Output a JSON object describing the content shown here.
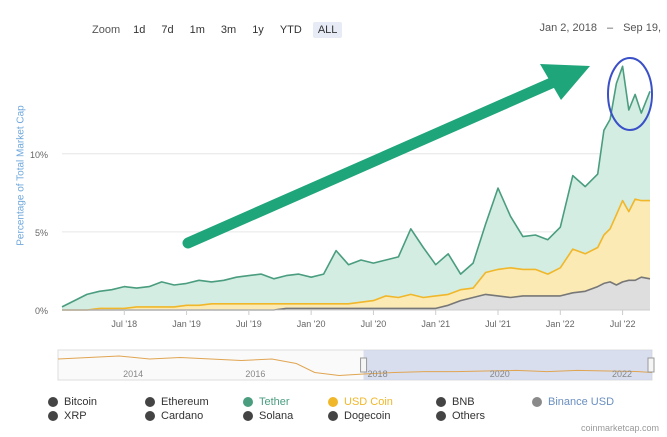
{
  "zoom": {
    "label": "Zoom",
    "buttons": [
      "1d",
      "7d",
      "1m",
      "3m",
      "1y",
      "YTD",
      "ALL"
    ]
  },
  "range": {
    "from": "Jan 2, 2018",
    "separator": "–",
    "to": "Sep 19,"
  },
  "chart_data": {
    "type": "area",
    "title": "",
    "ylabel": "Percentage of Total Market Cap",
    "ylim": [
      0,
      16
    ],
    "yticks": [
      {
        "value": 0,
        "label": "0%"
      },
      {
        "value": 5,
        "label": "5%"
      },
      {
        "value": 10,
        "label": "10%"
      }
    ],
    "xlim": [
      2018.0,
      2022.72
    ],
    "xticks": [
      {
        "value": 2018.5,
        "label": "Jul '18"
      },
      {
        "value": 2019.0,
        "label": "Jan '19"
      },
      {
        "value": 2019.5,
        "label": "Jul '19"
      },
      {
        "value": 2020.0,
        "label": "Jan '20"
      },
      {
        "value": 2020.5,
        "label": "Jul '20"
      },
      {
        "value": 2021.0,
        "label": "Jan '21"
      },
      {
        "value": 2021.5,
        "label": "Jul '21"
      },
      {
        "value": 2022.0,
        "label": "Jan '22"
      },
      {
        "value": 2022.5,
        "label": "Jul '22"
      }
    ],
    "x": [
      2018.0,
      2018.1,
      2018.2,
      2018.3,
      2018.4,
      2018.5,
      2018.6,
      2018.7,
      2018.8,
      2018.9,
      2019.0,
      2019.1,
      2019.2,
      2019.3,
      2019.4,
      2019.5,
      2019.6,
      2019.7,
      2019.8,
      2019.9,
      2020.0,
      2020.1,
      2020.2,
      2020.3,
      2020.4,
      2020.5,
      2020.6,
      2020.7,
      2020.8,
      2020.9,
      2021.0,
      2021.1,
      2021.2,
      2021.3,
      2021.4,
      2021.5,
      2021.6,
      2021.7,
      2021.8,
      2021.9,
      2022.0,
      2022.1,
      2022.2,
      2022.3,
      2022.35,
      2022.4,
      2022.45,
      2022.5,
      2022.55,
      2022.6,
      2022.65,
      2022.72
    ],
    "series": [
      {
        "name": "Tether",
        "color": "#4a9d7f",
        "fill": "#d3ede3",
        "values": [
          0.2,
          0.6,
          1.0,
          1.2,
          1.3,
          1.5,
          1.4,
          1.5,
          1.8,
          1.6,
          1.7,
          1.9,
          1.8,
          1.9,
          2.1,
          2.2,
          2.3,
          2.0,
          2.2,
          2.3,
          2.1,
          2.3,
          3.8,
          2.9,
          3.2,
          3.0,
          3.2,
          3.4,
          5.2,
          4.0,
          2.9,
          3.6,
          2.3,
          3.0,
          5.5,
          7.8,
          6.0,
          4.7,
          4.8,
          4.5,
          5.3,
          8.6,
          7.9,
          8.7,
          11.5,
          12.2,
          14.5,
          15.6,
          12.8,
          13.8,
          12.6,
          14.0
        ]
      },
      {
        "name": "USD Coin",
        "color": "#f0b72a",
        "fill": "#fbeab4",
        "values": [
          0.0,
          0.0,
          0.0,
          0.1,
          0.1,
          0.1,
          0.2,
          0.2,
          0.2,
          0.2,
          0.3,
          0.3,
          0.4,
          0.4,
          0.4,
          0.4,
          0.4,
          0.4,
          0.4,
          0.4,
          0.4,
          0.4,
          0.4,
          0.4,
          0.5,
          0.6,
          0.9,
          0.8,
          1.0,
          0.8,
          0.9,
          1.0,
          1.3,
          1.4,
          2.4,
          2.6,
          2.7,
          2.6,
          2.6,
          2.3,
          2.7,
          3.9,
          3.6,
          4.0,
          4.8,
          5.2,
          6.1,
          7.0,
          6.3,
          7.1,
          7.0,
          7.0
        ]
      },
      {
        "name": "Binance USD",
        "color": "#777777",
        "fill": "#dedede",
        "values": [
          0.0,
          0.0,
          0.0,
          0.0,
          0.0,
          0.0,
          0.0,
          0.0,
          0.0,
          0.0,
          0.0,
          0.0,
          0.0,
          0.0,
          0.0,
          0.0,
          0.0,
          0.0,
          0.1,
          0.1,
          0.1,
          0.1,
          0.1,
          0.1,
          0.1,
          0.1,
          0.1,
          0.1,
          0.1,
          0.1,
          0.1,
          0.3,
          0.6,
          0.8,
          1.0,
          0.9,
          0.8,
          0.9,
          0.9,
          0.9,
          0.9,
          1.1,
          1.2,
          1.5,
          1.7,
          1.8,
          1.6,
          1.8,
          1.9,
          1.9,
          2.1,
          2.0
        ]
      }
    ],
    "navigator": {
      "xticks": [
        {
          "value": 2014,
          "label": "2014"
        },
        {
          "value": 2016,
          "label": "2016"
        },
        {
          "value": 2018,
          "label": "2018"
        },
        {
          "value": 2020,
          "label": "2020"
        },
        {
          "value": 2022,
          "label": "2022"
        }
      ],
      "xlim": [
        2013.0,
        2022.72
      ],
      "selection": [
        2018.0,
        2022.72
      ],
      "color": "#e0a552"
    },
    "legend": [
      {
        "name": "Bitcoin",
        "color": "#444444",
        "active": false
      },
      {
        "name": "Ethereum",
        "color": "#444444",
        "active": false
      },
      {
        "name": "Tether",
        "color": "#4a9d7f",
        "active": true
      },
      {
        "name": "USD Coin",
        "color": "#f0b72a",
        "active": true
      },
      {
        "name": "BNB",
        "color": "#444444",
        "active": false
      },
      {
        "name": "Binance USD",
        "color": "#8a8a8a",
        "active": true
      },
      {
        "name": "XRP",
        "color": "#444444",
        "active": false
      },
      {
        "name": "Cardano",
        "color": "#444444",
        "active": false
      },
      {
        "name": "Solana",
        "color": "#444444",
        "active": false
      },
      {
        "name": "Dogecoin",
        "color": "#444444",
        "active": false
      },
      {
        "name": "Others",
        "color": "#444444",
        "active": false
      }
    ],
    "annotations": {
      "arrow_color": "#1fa57a",
      "circle_color": "#3a50c8"
    }
  },
  "credits": "coinmarketcap.com"
}
